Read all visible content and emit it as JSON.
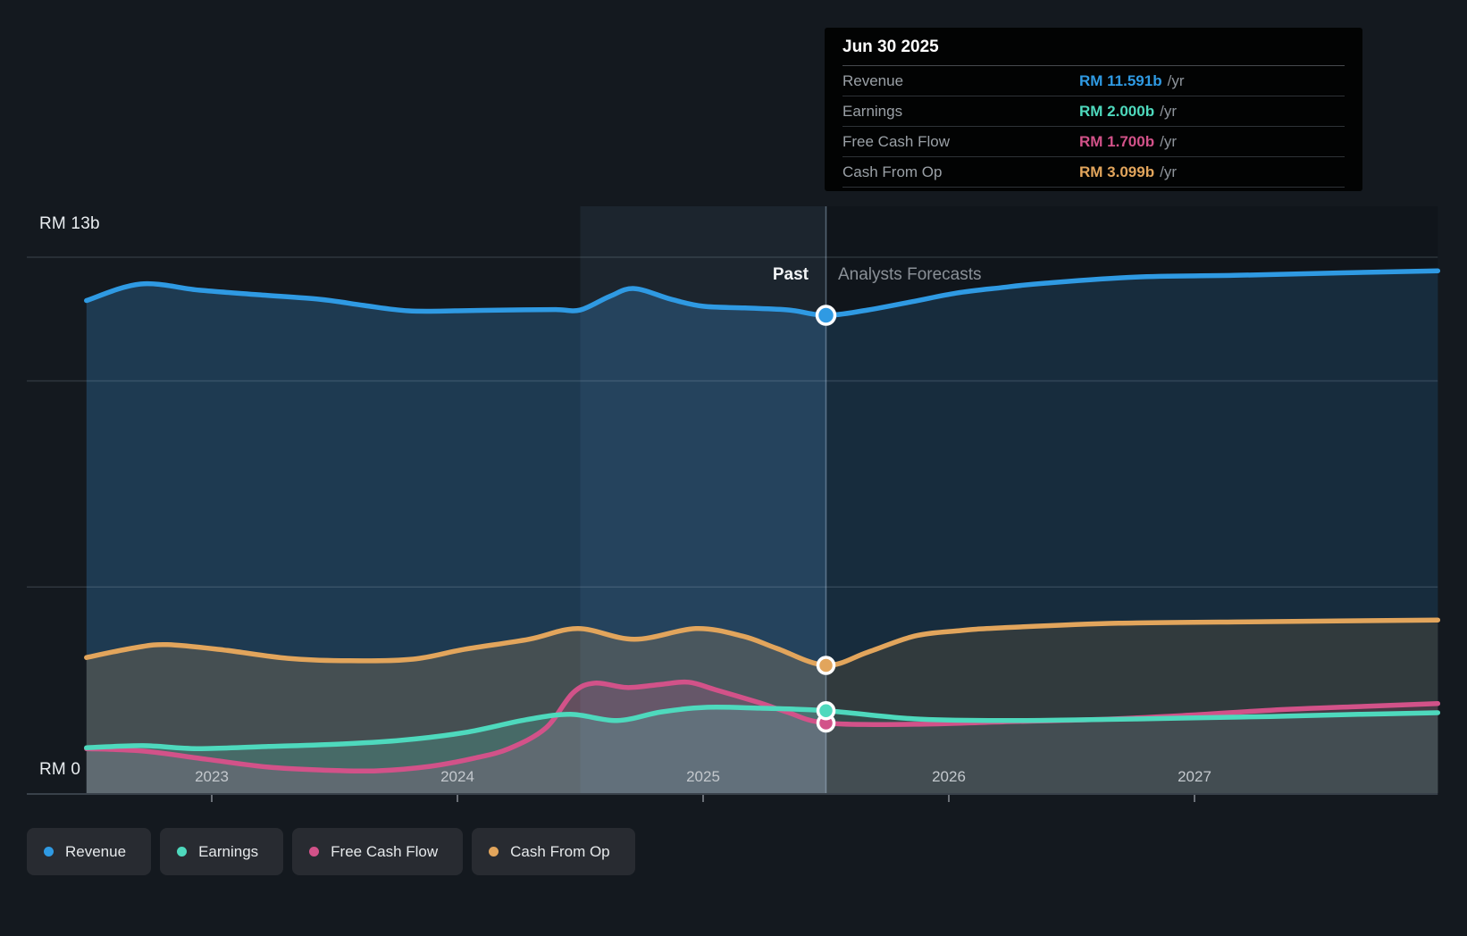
{
  "tooltip": {
    "title": "Jun 30 2025",
    "rows": [
      {
        "label": "Revenue",
        "value": "RM 11.591b",
        "suffix": "/yr",
        "color": "#2f9ae3"
      },
      {
        "label": "Earnings",
        "value": "RM 2.000b",
        "suffix": "/yr",
        "color": "#4ed9bd"
      },
      {
        "label": "Free Cash Flow",
        "value": "RM 1.700b",
        "suffix": "/yr",
        "color": "#d25289"
      },
      {
        "label": "Cash From Op",
        "value": "RM 3.099b",
        "suffix": "/yr",
        "color": "#e2a55c"
      }
    ]
  },
  "annotations": {
    "past_label": "Past",
    "forecast_label": "Analysts Forecasts"
  },
  "legend": {
    "items": [
      {
        "label": "Revenue",
        "color": "#2f9ae3"
      },
      {
        "label": "Earnings",
        "color": "#4ed9bd"
      },
      {
        "label": "Free Cash Flow",
        "color": "#d25289"
      },
      {
        "label": "Cash From Op",
        "color": "#e2a55c"
      }
    ]
  },
  "chart_data": {
    "type": "area",
    "unit": "RM billions per year",
    "title": "Past performance and analysts forecasts for Revenue, Earnings, Free Cash Flow and Cash From Op",
    "x_axis": {
      "min": 2022.49,
      "max": 2027.99,
      "ticks": [
        2023,
        2024,
        2025,
        2026,
        2027
      ],
      "labels": [
        "2023",
        "2024",
        "2025",
        "2026",
        "2027"
      ]
    },
    "y_axis": {
      "min": 0,
      "max": 13,
      "gridlines": [
        13,
        10,
        5,
        0
      ],
      "top_label": "RM 13b",
      "bottom_label": "RM 0"
    },
    "divider_x": 2025.5,
    "divider_date": "Jun 30 2025",
    "highlight_band": [
      2024.5,
      2025.5
    ],
    "series": [
      {
        "id": "revenue",
        "name": "Revenue",
        "color": "#2f9ae3",
        "fill": "rgba(56,135,200,0.30)",
        "marker_value": 11.591,
        "points": [
          [
            2022.49,
            11.95
          ],
          [
            2022.71,
            12.35
          ],
          [
            2022.95,
            12.2
          ],
          [
            2023.19,
            12.09
          ],
          [
            2023.44,
            11.98
          ],
          [
            2023.62,
            11.83
          ],
          [
            2023.8,
            11.7
          ],
          [
            2024.0,
            11.7
          ],
          [
            2024.2,
            11.72
          ],
          [
            2024.4,
            11.73
          ],
          [
            2024.5,
            11.72
          ],
          [
            2024.62,
            12.05
          ],
          [
            2024.72,
            12.24
          ],
          [
            2024.87,
            11.98
          ],
          [
            2025.0,
            11.81
          ],
          [
            2025.17,
            11.77
          ],
          [
            2025.35,
            11.72
          ],
          [
            2025.5,
            11.59
          ],
          [
            2025.67,
            11.72
          ],
          [
            2025.85,
            11.92
          ],
          [
            2026.03,
            12.13
          ],
          [
            2026.21,
            12.26
          ],
          [
            2026.39,
            12.37
          ],
          [
            2026.76,
            12.52
          ],
          [
            2027.16,
            12.56
          ],
          [
            2027.6,
            12.62
          ],
          [
            2027.99,
            12.67
          ]
        ]
      },
      {
        "id": "earnings",
        "name": "Earnings",
        "color": "#4ed9bd",
        "fill": "rgba(78,217,189,0.20)",
        "marker_value": 2.0,
        "points": [
          [
            2022.49,
            1.1
          ],
          [
            2022.72,
            1.15
          ],
          [
            2022.94,
            1.08
          ],
          [
            2023.23,
            1.13
          ],
          [
            2023.52,
            1.19
          ],
          [
            2023.77,
            1.28
          ],
          [
            2024.03,
            1.47
          ],
          [
            2024.28,
            1.78
          ],
          [
            2024.46,
            1.91
          ],
          [
            2024.65,
            1.76
          ],
          [
            2024.83,
            1.97
          ],
          [
            2025.01,
            2.08
          ],
          [
            2025.23,
            2.06
          ],
          [
            2025.5,
            2.0
          ],
          [
            2025.86,
            1.8
          ],
          [
            2026.22,
            1.76
          ],
          [
            2026.58,
            1.78
          ],
          [
            2026.95,
            1.82
          ],
          [
            2027.31,
            1.86
          ],
          [
            2027.67,
            1.91
          ],
          [
            2027.99,
            1.95
          ]
        ]
      },
      {
        "id": "free_cash_flow",
        "name": "Free Cash Flow",
        "color": "#d25289",
        "fill": "rgba(210,82,137,0.22)",
        "marker_value": 1.7,
        "points": [
          [
            2022.49,
            1.08
          ],
          [
            2022.72,
            1.02
          ],
          [
            2022.98,
            0.82
          ],
          [
            2023.23,
            0.63
          ],
          [
            2023.45,
            0.56
          ],
          [
            2023.67,
            0.54
          ],
          [
            2023.89,
            0.65
          ],
          [
            2024.07,
            0.85
          ],
          [
            2024.21,
            1.08
          ],
          [
            2024.36,
            1.58
          ],
          [
            2024.47,
            2.43
          ],
          [
            2024.56,
            2.67
          ],
          [
            2024.69,
            2.56
          ],
          [
            2024.83,
            2.64
          ],
          [
            2024.94,
            2.69
          ],
          [
            2025.05,
            2.51
          ],
          [
            2025.23,
            2.19
          ],
          [
            2025.34,
            1.97
          ],
          [
            2025.5,
            1.7
          ],
          [
            2025.86,
            1.67
          ],
          [
            2026.22,
            1.73
          ],
          [
            2026.58,
            1.78
          ],
          [
            2026.95,
            1.88
          ],
          [
            2027.31,
            2.01
          ],
          [
            2027.67,
            2.1
          ],
          [
            2027.99,
            2.17
          ]
        ]
      },
      {
        "id": "cash_from_op",
        "name": "Cash From Op",
        "color": "#e2a55c",
        "fill": "rgba(226,165,92,0.20)",
        "marker_value": 3.099,
        "points": [
          [
            2022.49,
            3.29
          ],
          [
            2022.69,
            3.53
          ],
          [
            2022.82,
            3.6
          ],
          [
            2023.05,
            3.47
          ],
          [
            2023.31,
            3.27
          ],
          [
            2023.56,
            3.21
          ],
          [
            2023.82,
            3.25
          ],
          [
            2024.03,
            3.49
          ],
          [
            2024.29,
            3.73
          ],
          [
            2024.49,
            3.99
          ],
          [
            2024.72,
            3.73
          ],
          [
            2024.97,
            3.99
          ],
          [
            2025.16,
            3.81
          ],
          [
            2025.3,
            3.51
          ],
          [
            2025.5,
            3.1
          ],
          [
            2025.67,
            3.42
          ],
          [
            2025.86,
            3.81
          ],
          [
            2026.04,
            3.94
          ],
          [
            2026.22,
            4.01
          ],
          [
            2026.69,
            4.12
          ],
          [
            2027.31,
            4.16
          ],
          [
            2027.99,
            4.2
          ]
        ]
      }
    ]
  }
}
